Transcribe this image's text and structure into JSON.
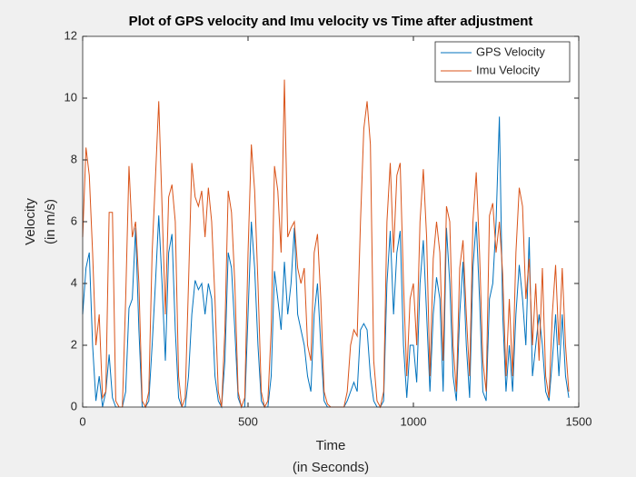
{
  "chart_data": {
    "type": "line",
    "title": "Plot of GPS velocity and Imu velocity vs Time after adjustment",
    "xlabel": [
      "Time",
      "(in Seconds)"
    ],
    "ylabel": [
      "Velocity",
      "(in m/s)"
    ],
    "xlim": [
      0,
      1500
    ],
    "xticks": [
      0,
      500,
      1000,
      1500
    ],
    "ylim": [
      0,
      12
    ],
    "yticks": [
      0,
      2,
      4,
      6,
      8,
      10,
      12
    ],
    "legend": "top-right",
    "grid": false,
    "x": [
      0,
      10,
      20,
      30,
      40,
      50,
      60,
      70,
      80,
      90,
      100,
      110,
      120,
      130,
      140,
      150,
      160,
      170,
      180,
      190,
      200,
      210,
      220,
      230,
      240,
      250,
      260,
      270,
      280,
      290,
      300,
      310,
      320,
      330,
      340,
      350,
      360,
      370,
      380,
      390,
      400,
      410,
      420,
      430,
      440,
      450,
      460,
      470,
      480,
      490,
      500,
      510,
      520,
      530,
      540,
      550,
      560,
      570,
      580,
      590,
      600,
      610,
      620,
      630,
      640,
      650,
      660,
      670,
      680,
      690,
      700,
      710,
      720,
      730,
      740,
      750,
      760,
      770,
      780,
      790,
      800,
      810,
      820,
      830,
      840,
      850,
      860,
      870,
      880,
      890,
      900,
      910,
      920,
      930,
      940,
      950,
      960,
      970,
      980,
      990,
      1000,
      1010,
      1020,
      1030,
      1040,
      1050,
      1060,
      1070,
      1080,
      1090,
      1100,
      1110,
      1120,
      1130,
      1140,
      1150,
      1160,
      1170,
      1180,
      1190,
      1200,
      1210,
      1220,
      1230,
      1240,
      1250,
      1260,
      1270,
      1280,
      1290,
      1300,
      1310,
      1320,
      1330,
      1340,
      1350,
      1360,
      1370,
      1380,
      1390,
      1400,
      1410,
      1420,
      1430,
      1440,
      1450,
      1460,
      1470
    ],
    "series": [
      {
        "name": "GPS Velocity",
        "color": "#0072BD",
        "values": [
          3.0,
          4.5,
          5.0,
          2.0,
          0.2,
          1.0,
          0,
          0.5,
          1.7,
          0.3,
          0,
          0,
          0,
          0.5,
          3.2,
          3.5,
          5.8,
          2.5,
          0,
          0,
          0.2,
          2.0,
          4.0,
          6.2,
          4.0,
          1.5,
          5.0,
          5.6,
          2.5,
          0.3,
          0,
          0,
          1.0,
          3.0,
          4.1,
          3.8,
          4.0,
          3.0,
          4.0,
          3.5,
          1.0,
          0.2,
          0,
          1.5,
          5.0,
          4.5,
          2.5,
          0.3,
          0,
          0,
          3.0,
          6.0,
          4.5,
          2.0,
          0.2,
          0,
          0,
          1.0,
          4.4,
          3.5,
          2.5,
          4.7,
          3.0,
          4.0,
          5.8,
          3.0,
          2.5,
          2.0,
          1.0,
          0.5,
          3.0,
          4.0,
          2.0,
          0.2,
          0,
          0,
          0,
          0,
          0,
          0,
          0.2,
          0.5,
          0.8,
          0.5,
          2.5,
          2.7,
          2.5,
          1.0,
          0.2,
          0,
          0,
          0.2,
          4.0,
          5.7,
          3.0,
          5.0,
          5.7,
          2.0,
          0.3,
          2.0,
          2.0,
          0.8,
          4.0,
          5.4,
          3.0,
          0.5,
          3.0,
          4.2,
          3.5,
          0.5,
          5.8,
          4.0,
          1.0,
          0.2,
          3.0,
          4.7,
          2.0,
          0.3,
          4.5,
          6.0,
          3.5,
          0.5,
          0.2,
          3.5,
          4.0,
          6.0,
          9.4,
          3.0,
          0.5,
          2.0,
          0.5,
          3.0,
          4.6,
          3.5,
          2.0,
          5.5,
          1.0,
          2.0,
          3.0,
          2.0,
          0.5,
          0.2,
          1.5,
          3.0,
          1.0,
          3.0,
          1.0,
          0.3
        ]
      },
      {
        "name": "Imu Velocity",
        "color": "#D95319",
        "values": [
          5.5,
          8.4,
          7.5,
          5.0,
          2.0,
          3.0,
          0.3,
          0.5,
          6.3,
          6.3,
          0.2,
          0,
          0,
          3.5,
          7.8,
          5.5,
          6.0,
          4.0,
          0.2,
          0,
          0.5,
          5.0,
          7.4,
          9.9,
          6.5,
          3.0,
          6.8,
          7.2,
          6.0,
          1.0,
          0,
          0.3,
          4.0,
          7.9,
          6.8,
          6.5,
          7.0,
          5.5,
          7.1,
          6.0,
          3.5,
          0.5,
          0,
          2.5,
          7.0,
          6.3,
          4.0,
          0.5,
          0,
          0.3,
          5.0,
          8.5,
          7.0,
          4.0,
          0.5,
          0,
          0.2,
          2.5,
          7.8,
          7.0,
          5.0,
          10.6,
          5.5,
          5.8,
          6.0,
          4.5,
          4.0,
          4.5,
          2.0,
          1.5,
          5.0,
          5.6,
          3.5,
          0.5,
          0.1,
          0,
          0,
          0,
          0,
          0,
          0.5,
          2.0,
          2.5,
          2.3,
          6.0,
          9.0,
          9.9,
          8.5,
          1.5,
          0.2,
          0,
          0.5,
          6.0,
          7.9,
          5.0,
          7.5,
          7.9,
          4.0,
          1.0,
          3.5,
          4.0,
          2.0,
          6.0,
          7.7,
          5.5,
          1.0,
          4.8,
          6.0,
          5.0,
          1.5,
          6.5,
          6.0,
          2.0,
          0.5,
          4.5,
          5.4,
          3.0,
          1.0,
          6.0,
          7.6,
          5.0,
          1.5,
          0.5,
          6.2,
          6.6,
          5.0,
          6.0,
          4.3,
          1.0,
          3.5,
          1.0,
          5.0,
          7.1,
          6.5,
          3.5,
          4.8,
          2.0,
          4.0,
          1.5,
          4.5,
          1.0,
          0.3,
          3.0,
          4.6,
          2.0,
          4.5,
          2.0,
          0.5
        ]
      }
    ]
  }
}
